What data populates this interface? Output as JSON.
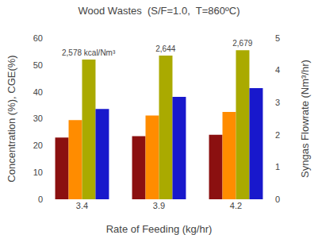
{
  "chart_data": {
    "type": "bar",
    "title": "Wood Wastes  (S/F=1.0,  T=860ºC)",
    "xlabel": "Rate of Feeding (kg/hr)",
    "ylabel": "Concentration (%), CGE(%)",
    "y2label": "Syngas Flowrate (Nm³/hr)",
    "categories": [
      "3.4",
      "3.9",
      "4.2"
    ],
    "series": [
      {
        "color": "#8B1010",
        "values": [
          23.0,
          23.5,
          24.0
        ]
      },
      {
        "color": "#FF8C00",
        "values": [
          29.5,
          31.2,
          32.5
        ]
      },
      {
        "color": "#AAAA00",
        "values": [
          52.0,
          53.5,
          55.5
        ],
        "annotations": [
          "2,578 kcal/Nm³",
          "2,644",
          "2,679"
        ]
      },
      {
        "color": "#1818CC",
        "values": [
          2.8,
          3.18,
          3.45
        ],
        "axis": "y2"
      }
    ],
    "ylim": [
      0,
      60
    ],
    "yticks": [
      0,
      10,
      20,
      30,
      40,
      50,
      60
    ],
    "y2lim": [
      0,
      5
    ],
    "y2ticks": [
      0,
      1,
      2,
      3,
      4,
      5
    ],
    "grid": false
  }
}
